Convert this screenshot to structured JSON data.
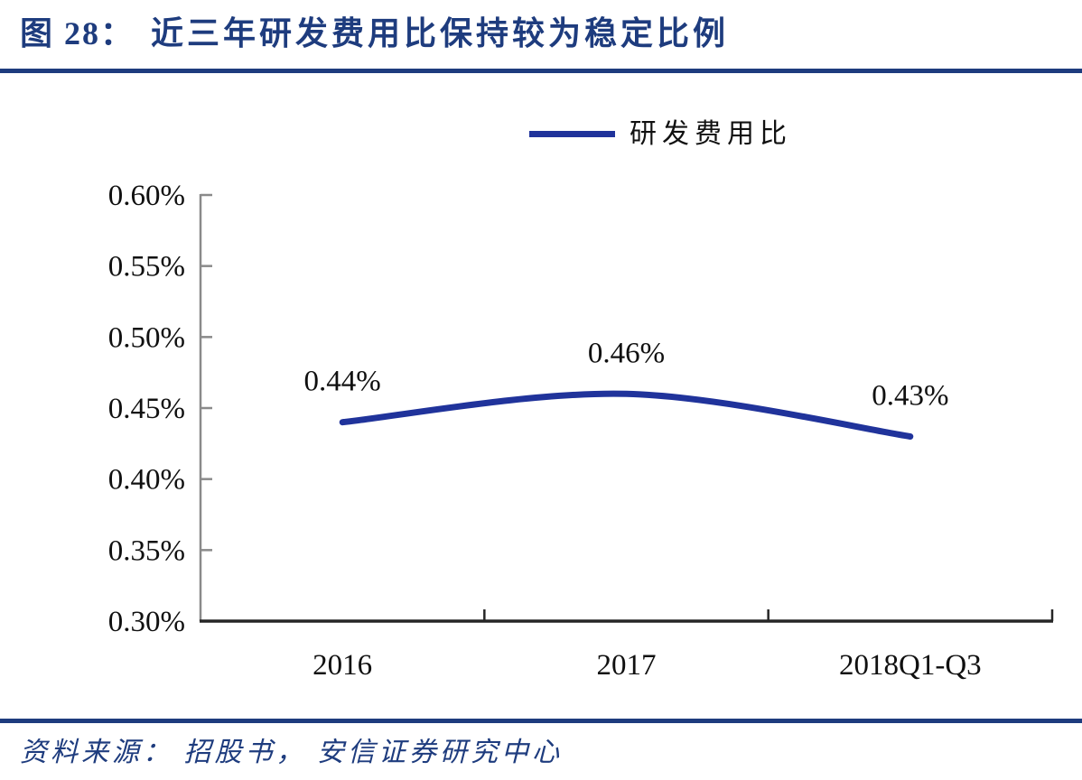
{
  "figure": {
    "title_prefix": "图 28：",
    "title_text": "近三年研发费用比保持较为稳定比例",
    "source_text": "资料来源： 招股书， 安信证券研究中心"
  },
  "legend": {
    "label": "研发费用比"
  },
  "colors": {
    "navy": "#1e3c7e",
    "series_blue": "#20339b",
    "axis_y_gray": "#8a8a8a",
    "axis_x_dark": "#262626",
    "chart_text": "#101010",
    "background": "#ffffff"
  },
  "chart_data": {
    "type": "line",
    "title": "近三年研发费用比保持较为稳定比例",
    "categories": [
      "2016",
      "2017",
      "2018Q1-Q3"
    ],
    "series": [
      {
        "name": "研发费用比",
        "values": [
          0.44,
          0.46,
          0.43
        ]
      }
    ],
    "data_labels": [
      "0.44%",
      "0.46%",
      "0.43%"
    ],
    "unit": "%",
    "xlabel": "",
    "ylabel": "",
    "ylim": [
      0.3,
      0.6
    ],
    "ytick_step": 0.05,
    "ytick_labels": [
      "0.60%",
      "0.55%",
      "0.50%",
      "0.45%",
      "0.40%",
      "0.35%",
      "0.30%"
    ],
    "grid": false,
    "line_smooth": true,
    "legend_position": "top-center"
  }
}
